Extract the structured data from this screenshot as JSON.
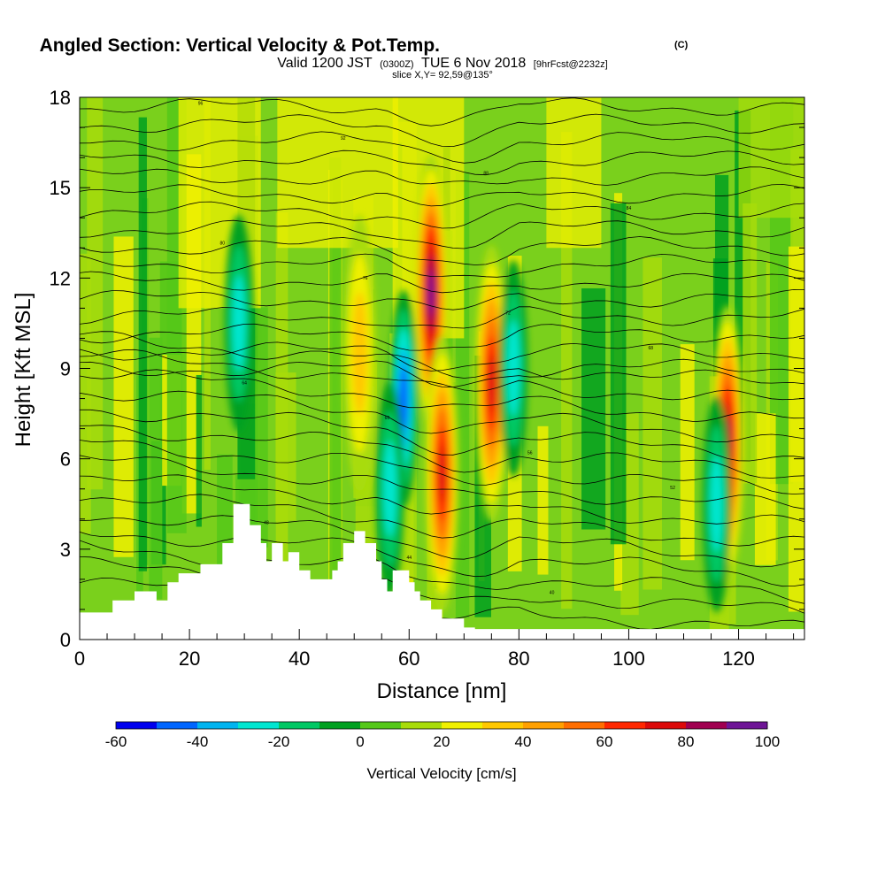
{
  "chart_data": {
    "type": "heatmap",
    "title": "Angled Section: Vertical Velocity & Pot.Temp.",
    "title_mark": "(C)",
    "subtitle": {
      "prefix": "Valid 1200 JST",
      "utc": "(0300Z)",
      "date": "TUE 6 Nov 2018",
      "forecast": "[9hrFcst@2232z]"
    },
    "slice_text": "slice X,Y= 92,59@135°",
    "xlabel": "Distance [nm]",
    "ylabel": "Height [Kft MSL]",
    "xlim": [
      0,
      132
    ],
    "ylim": [
      0,
      18
    ],
    "x_ticks": [
      "0",
      "20",
      "40",
      "60",
      "80",
      "100",
      "120"
    ],
    "y_ticks": [
      "0",
      "3",
      "6",
      "9",
      "12",
      "15",
      "18"
    ],
    "colorbar": {
      "label": "Vertical Velocity [cm/s]",
      "range": [
        -60,
        100
      ],
      "tick_labels": [
        "-60",
        "-40",
        "-20",
        "0",
        "20",
        "40",
        "60",
        "80",
        "100"
      ],
      "colors": [
        "#0000ee",
        "#0066ff",
        "#00b4f0",
        "#00e6d0",
        "#00c864",
        "#00a020",
        "#55c819",
        "#a8dc0a",
        "#f0f000",
        "#ffc800",
        "#ffa000",
        "#ff6e00",
        "#ff2800",
        "#dc0a0a",
        "#a00050",
        "#6e1496"
      ]
    },
    "velocity_features": [
      {
        "kind": "updraft",
        "x": 64,
        "y": 11.5,
        "value": 100
      },
      {
        "kind": "updraft",
        "x": 66,
        "y": 5.5,
        "value": 75
      },
      {
        "kind": "updraft",
        "x": 75,
        "y": 8.5,
        "value": 80
      },
      {
        "kind": "updraft",
        "x": 118,
        "y": 6.5,
        "value": 85
      },
      {
        "kind": "updraft",
        "x": 51,
        "y": 9.5,
        "value": 40
      },
      {
        "kind": "downdraft",
        "x": 59,
        "y": 8,
        "value": -45
      },
      {
        "kind": "downdraft",
        "x": 56.5,
        "y": 5,
        "value": -30
      },
      {
        "kind": "downdraft",
        "x": 79,
        "y": 9,
        "value": -25
      },
      {
        "kind": "downdraft",
        "x": 116,
        "y": 4.5,
        "value": -25
      },
      {
        "kind": "downdraft",
        "x": 29,
        "y": 10.5,
        "value": -25
      }
    ],
    "terrain_profile": [
      [
        0,
        0.9
      ],
      [
        6,
        0.9
      ],
      [
        6,
        1.3
      ],
      [
        10,
        1.3
      ],
      [
        10,
        1.6
      ],
      [
        14,
        1.6
      ],
      [
        14,
        1.3
      ],
      [
        16,
        1.3
      ],
      [
        16,
        1.9
      ],
      [
        18,
        1.9
      ],
      [
        18,
        2.2
      ],
      [
        22,
        2.2
      ],
      [
        22,
        2.5
      ],
      [
        26,
        2.5
      ],
      [
        26,
        3.2
      ],
      [
        28,
        3.2
      ],
      [
        28,
        4.5
      ],
      [
        31,
        4.5
      ],
      [
        31,
        3.8
      ],
      [
        33,
        3.8
      ],
      [
        33,
        3.2
      ],
      [
        34,
        3.2
      ],
      [
        34,
        2.6
      ],
      [
        35,
        2.6
      ],
      [
        35,
        3.2
      ],
      [
        37,
        3.2
      ],
      [
        37,
        2.6
      ],
      [
        38,
        2.6
      ],
      [
        38,
        2.9
      ],
      [
        40,
        2.9
      ],
      [
        40,
        2.3
      ],
      [
        42,
        2.3
      ],
      [
        42,
        2.0
      ],
      [
        46,
        2.0
      ],
      [
        46,
        2.3
      ],
      [
        47,
        2.3
      ],
      [
        47,
        2.6
      ],
      [
        48,
        2.6
      ],
      [
        48,
        3.2
      ],
      [
        50,
        3.2
      ],
      [
        50,
        3.6
      ],
      [
        52,
        3.6
      ],
      [
        52,
        3.2
      ],
      [
        54,
        3.2
      ],
      [
        54,
        2.6
      ],
      [
        55,
        2.6
      ],
      [
        55,
        2.0
      ],
      [
        56,
        2.0
      ],
      [
        56,
        1.6
      ],
      [
        57,
        1.6
      ],
      [
        57,
        2.3
      ],
      [
        60,
        2.3
      ],
      [
        60,
        1.9
      ],
      [
        61,
        1.9
      ],
      [
        61,
        1.6
      ],
      [
        62,
        1.6
      ],
      [
        62,
        1.3
      ],
      [
        64,
        1.3
      ],
      [
        64,
        1.0
      ],
      [
        66,
        1.0
      ],
      [
        66,
        0.7
      ],
      [
        70,
        0.7
      ],
      [
        70,
        0.4
      ],
      [
        72,
        0.4
      ],
      [
        72,
        0.35
      ],
      [
        132,
        0.35
      ]
    ],
    "theta_contours_c": [
      "36",
      "38",
      "40",
      "42",
      "44",
      "46",
      "48",
      "50",
      "52",
      "54",
      "56",
      "58",
      "60",
      "62",
      "64",
      "66",
      "68",
      "70",
      "72",
      "74",
      "76",
      "78",
      "80",
      "82",
      "84",
      "86",
      "88",
      "90",
      "92",
      "94",
      "96"
    ]
  }
}
